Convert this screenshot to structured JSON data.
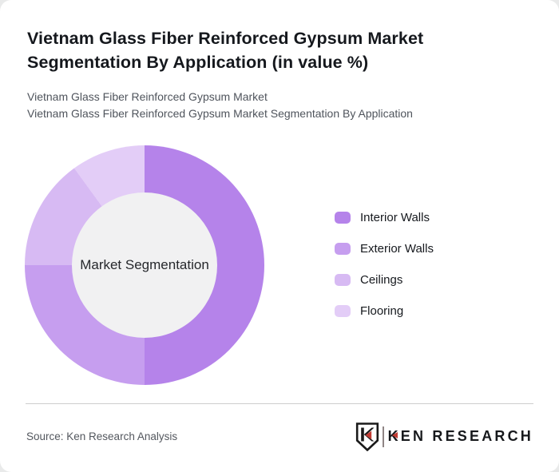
{
  "page": {
    "title": "Vietnam Glass Fiber Reinforced Gypsum Market Segmentation By Application (in value %)",
    "subtitle_line1": "Vietnam Glass Fiber Reinforced Gypsum Market",
    "subtitle_line2": "Vietnam Glass Fiber Reinforced Gypsum Market Segmentation By Application"
  },
  "chart_data": {
    "type": "pie",
    "variant": "donut",
    "title": "Vietnam Glass Fiber Reinforced Gypsum Market Segmentation By Application (in value %)",
    "center_label": "Market Segmentation",
    "categories": [
      "Interior Walls",
      "Exterior Walls",
      "Ceilings",
      "Flooring"
    ],
    "values": [
      50,
      25,
      15,
      10
    ],
    "unit": "%",
    "colors": [
      "#b583ea",
      "#c69eef",
      "#d7baf3",
      "#e3cdf7"
    ],
    "inner_circle_color": "#f1f1f2",
    "start_angle_deg": 0,
    "direction": "clockwise",
    "legend_position": "right"
  },
  "footer": {
    "source": "Source: Ken Research Analysis",
    "logo_text": "KEN RESEARCH"
  },
  "brand": {
    "accent_red": "#c13b33",
    "logo_dark": "#17191c"
  }
}
